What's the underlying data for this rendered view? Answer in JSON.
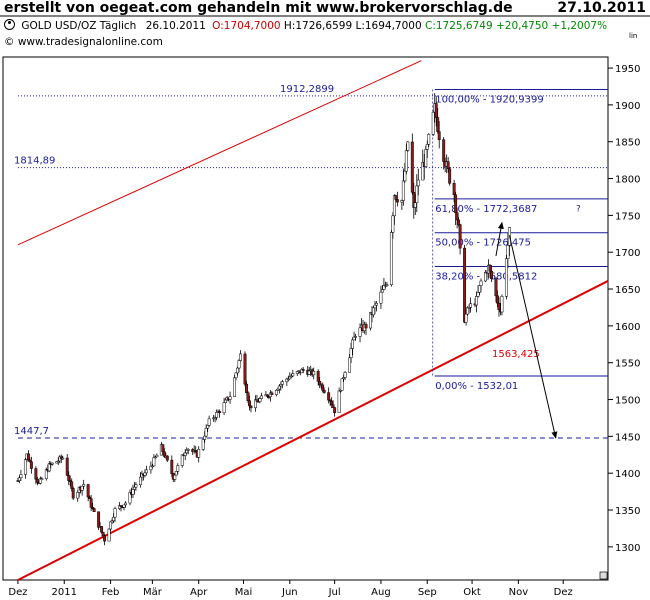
{
  "header": {
    "title": "erstellt von oegeat.com gehandeln mit www.brokervorschlag.de",
    "date": "27.10.2011"
  },
  "info": {
    "symbol": "GOLD USD/OZ Täglich",
    "last_date": "26.10.2011",
    "open": "O:1704,7000",
    "high": "H:1726,6599",
    "low": "L:1694,7000",
    "close": "C:1725,6749 +20,4750 +1,2007%",
    "website": "© www.tradesignalonline.com",
    "scale_mode": "lin"
  },
  "chart_data": {
    "type": "candlestick",
    "ylim": [
      1255,
      1965
    ],
    "y_ticks": [
      1300,
      1350,
      1400,
      1450,
      1500,
      1550,
      1600,
      1650,
      1700,
      1750,
      1800,
      1850,
      1900,
      1950
    ],
    "x_labels": [
      "Dez",
      "2011",
      "Feb",
      "Mär",
      "Apr",
      "Mai",
      "Jun",
      "Jul",
      "Aug",
      "Sep",
      "Okt",
      "Nov",
      "Dez"
    ],
    "series_color": "#000000",
    "accent_colors": {
      "trend": "#dd0000",
      "fib": "#1a1a9a",
      "price": "#000000",
      "candle_down": "#8b1a1a"
    },
    "path_points": [
      {
        "d": "2010-12-01",
        "v": 1390
      },
      {
        "d": "2010-12-07",
        "v": 1425
      },
      {
        "d": "2010-12-15",
        "v": 1385
      },
      {
        "d": "2010-12-22",
        "v": 1410
      },
      {
        "d": "2010-12-31",
        "v": 1421
      },
      {
        "d": "2011-01-07",
        "v": 1370
      },
      {
        "d": "2011-01-14",
        "v": 1385
      },
      {
        "d": "2011-01-21",
        "v": 1345
      },
      {
        "d": "2011-01-28",
        "v": 1310
      },
      {
        "d": "2011-02-04",
        "v": 1350
      },
      {
        "d": "2011-02-11",
        "v": 1360
      },
      {
        "d": "2011-02-18",
        "v": 1385
      },
      {
        "d": "2011-02-28",
        "v": 1410
      },
      {
        "d": "2011-03-07",
        "v": 1435
      },
      {
        "d": "2011-03-15",
        "v": 1395
      },
      {
        "d": "2011-03-24",
        "v": 1435
      },
      {
        "d": "2011-03-31",
        "v": 1425
      },
      {
        "d": "2011-04-08",
        "v": 1470
      },
      {
        "d": "2011-04-15",
        "v": 1485
      },
      {
        "d": "2011-04-22",
        "v": 1505
      },
      {
        "d": "2011-04-29",
        "v": 1560
      },
      {
        "d": "2011-05-05",
        "v": 1490
      },
      {
        "d": "2011-05-12",
        "v": 1500
      },
      {
        "d": "2011-05-20",
        "v": 1510
      },
      {
        "d": "2011-05-31",
        "v": 1530
      },
      {
        "d": "2011-06-10",
        "v": 1540
      },
      {
        "d": "2011-06-17",
        "v": 1535
      },
      {
        "d": "2011-06-28",
        "v": 1500
      },
      {
        "d": "2011-07-01",
        "v": 1485
      },
      {
        "d": "2011-07-08",
        "v": 1540
      },
      {
        "d": "2011-07-15",
        "v": 1590
      },
      {
        "d": "2011-07-22",
        "v": 1600
      },
      {
        "d": "2011-07-29",
        "v": 1630
      },
      {
        "d": "2011-08-05",
        "v": 1660
      },
      {
        "d": "2011-08-10",
        "v": 1780
      },
      {
        "d": "2011-08-15",
        "v": 1770
      },
      {
        "d": "2011-08-19",
        "v": 1850
      },
      {
        "d": "2011-08-23",
        "v": 1755
      },
      {
        "d": "2011-08-26",
        "v": 1800
      },
      {
        "d": "2011-08-31",
        "v": 1830
      },
      {
        "d": "2011-09-06",
        "v": 1895
      },
      {
        "d": "2011-09-09",
        "v": 1860
      },
      {
        "d": "2011-09-14",
        "v": 1815
      },
      {
        "d": "2011-09-19",
        "v": 1780
      },
      {
        "d": "2011-09-22",
        "v": 1730
      },
      {
        "d": "2011-09-26",
        "v": 1610
      },
      {
        "d": "2011-09-29",
        "v": 1625
      },
      {
        "d": "2011-10-04",
        "v": 1635
      },
      {
        "d": "2011-10-07",
        "v": 1660
      },
      {
        "d": "2011-10-12",
        "v": 1680
      },
      {
        "d": "2011-10-17",
        "v": 1640
      },
      {
        "d": "2011-10-20",
        "v": 1620
      },
      {
        "d": "2011-10-24",
        "v": 1695
      },
      {
        "d": "2011-10-26",
        "v": 1725
      }
    ],
    "levels": [
      {
        "name": "level-1912",
        "label": "1912,2899",
        "value": 1912.29,
        "style": "dotted",
        "from": "2010-12-01"
      },
      {
        "name": "level-1814",
        "label": "1814,89",
        "value": 1814.89,
        "style": "dotted",
        "from": "2010-12-01"
      },
      {
        "name": "level-1447",
        "label": "1447,7",
        "value": 1447.7,
        "style": "dashed",
        "from": "2010-12-01"
      }
    ],
    "fibonacci": [
      {
        "label": "100,00% - 1920,9399",
        "value": 1920.94
      },
      {
        "label": "61,80% - 1772,3687",
        "value": 1772.37
      },
      {
        "label": "50,00% - 1726,475",
        "value": 1726.48
      },
      {
        "label": "38,20% - 1680,5812",
        "value": 1680.58
      },
      {
        "label": "0,00% - 1532,01",
        "value": 1532.01
      }
    ],
    "fib_from": "2011-09-06",
    "fib_to": "2011-12-31",
    "fib_question_mark": "?",
    "trendlines": [
      {
        "name": "support-trendline",
        "from": {
          "d": "2010-12-01",
          "v": 1255
        },
        "to": {
          "d": "2011-12-31",
          "v": 1661
        },
        "width": 2
      },
      {
        "name": "channel-trendline",
        "from": {
          "d": "2010-12-01",
          "v": 1710
        },
        "to": {
          "d": "2011-08-28",
          "v": 1960
        },
        "width": 1
      }
    ],
    "support_label": {
      "text": "1563,425",
      "d": "2011-10-13",
      "v": 1563.4
    },
    "projection": [
      {
        "d": "2011-10-21",
        "v": 1740
      },
      {
        "d": "2011-10-26",
        "v": 1723
      },
      {
        "d": "2011-11-26",
        "v": 1448
      }
    ]
  }
}
